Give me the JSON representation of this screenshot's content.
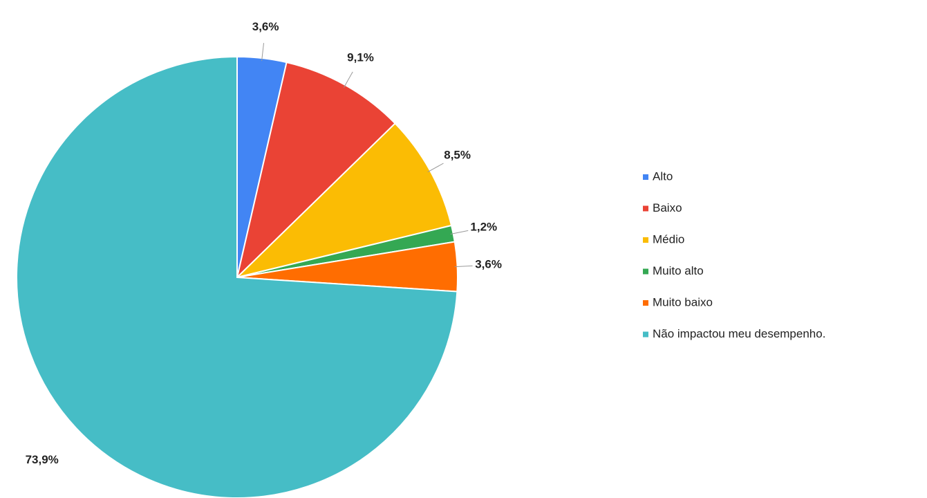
{
  "chart_data": {
    "type": "pie",
    "categories": [
      "Alto",
      "Baixo",
      "Médio",
      "Muito alto",
      "Muito baixo",
      "Não impactou meu desempenho."
    ],
    "values": [
      3.6,
      9.1,
      8.5,
      1.2,
      3.6,
      73.9
    ],
    "value_labels": [
      "3,6%",
      "9,1%",
      "8,5%",
      "1,2%",
      "3,6%",
      "73,9%"
    ],
    "colors": [
      "#4285f4",
      "#ea4335",
      "#fbbc04",
      "#34a853",
      "#ff6d01",
      "#46bdc6"
    ],
    "legend": "right"
  }
}
